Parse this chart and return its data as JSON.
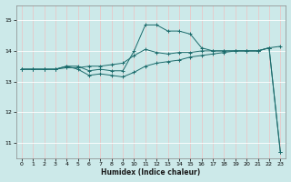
{
  "title": "",
  "xlabel": "Humidex (Indice chaleur)",
  "background_color": "#cce9e9",
  "grid_color": "#b0d4d4",
  "line_color": "#1a6b6b",
  "xlim": [
    -0.5,
    23.5
  ],
  "ylim": [
    10.5,
    15.5
  ],
  "yticks": [
    11,
    12,
    13,
    14,
    15
  ],
  "xticks": [
    0,
    1,
    2,
    3,
    4,
    5,
    6,
    7,
    8,
    9,
    10,
    11,
    12,
    13,
    14,
    15,
    16,
    17,
    18,
    19,
    20,
    21,
    22,
    23
  ],
  "line1_x": [
    0,
    1,
    2,
    3,
    4,
    5,
    6,
    7,
    8,
    9,
    10,
    11,
    12,
    13,
    14,
    15,
    16,
    17,
    18,
    19,
    20,
    21,
    22,
    23
  ],
  "line1_y": [
    13.4,
    13.4,
    13.4,
    13.4,
    13.45,
    13.45,
    13.5,
    13.5,
    13.55,
    13.6,
    13.85,
    14.05,
    13.95,
    13.9,
    13.95,
    13.95,
    14.0,
    14.0,
    14.0,
    14.0,
    14.0,
    14.0,
    14.1,
    14.15
  ],
  "line2_x": [
    0,
    1,
    2,
    3,
    4,
    5,
    6,
    7,
    8,
    9,
    10,
    11,
    12,
    13,
    14,
    15,
    16,
    17,
    18,
    19,
    20,
    21,
    22,
    23
  ],
  "line2_y": [
    13.4,
    13.4,
    13.4,
    13.4,
    13.5,
    13.5,
    13.35,
    13.4,
    13.35,
    13.35,
    14.0,
    14.85,
    14.85,
    14.65,
    14.65,
    14.55,
    14.1,
    14.0,
    14.0,
    14.0,
    14.0,
    14.0,
    14.1,
    10.7
  ],
  "line3_x": [
    0,
    1,
    2,
    3,
    4,
    5,
    6,
    7,
    8,
    9,
    10,
    11,
    12,
    13,
    14,
    15,
    16,
    17,
    18,
    19,
    20,
    21,
    22,
    23
  ],
  "line3_y": [
    13.4,
    13.4,
    13.4,
    13.4,
    13.5,
    13.4,
    13.2,
    13.25,
    13.2,
    13.15,
    13.3,
    13.5,
    13.6,
    13.65,
    13.7,
    13.8,
    13.85,
    13.9,
    13.95,
    14.0,
    14.0,
    14.0,
    14.1,
    10.7
  ]
}
